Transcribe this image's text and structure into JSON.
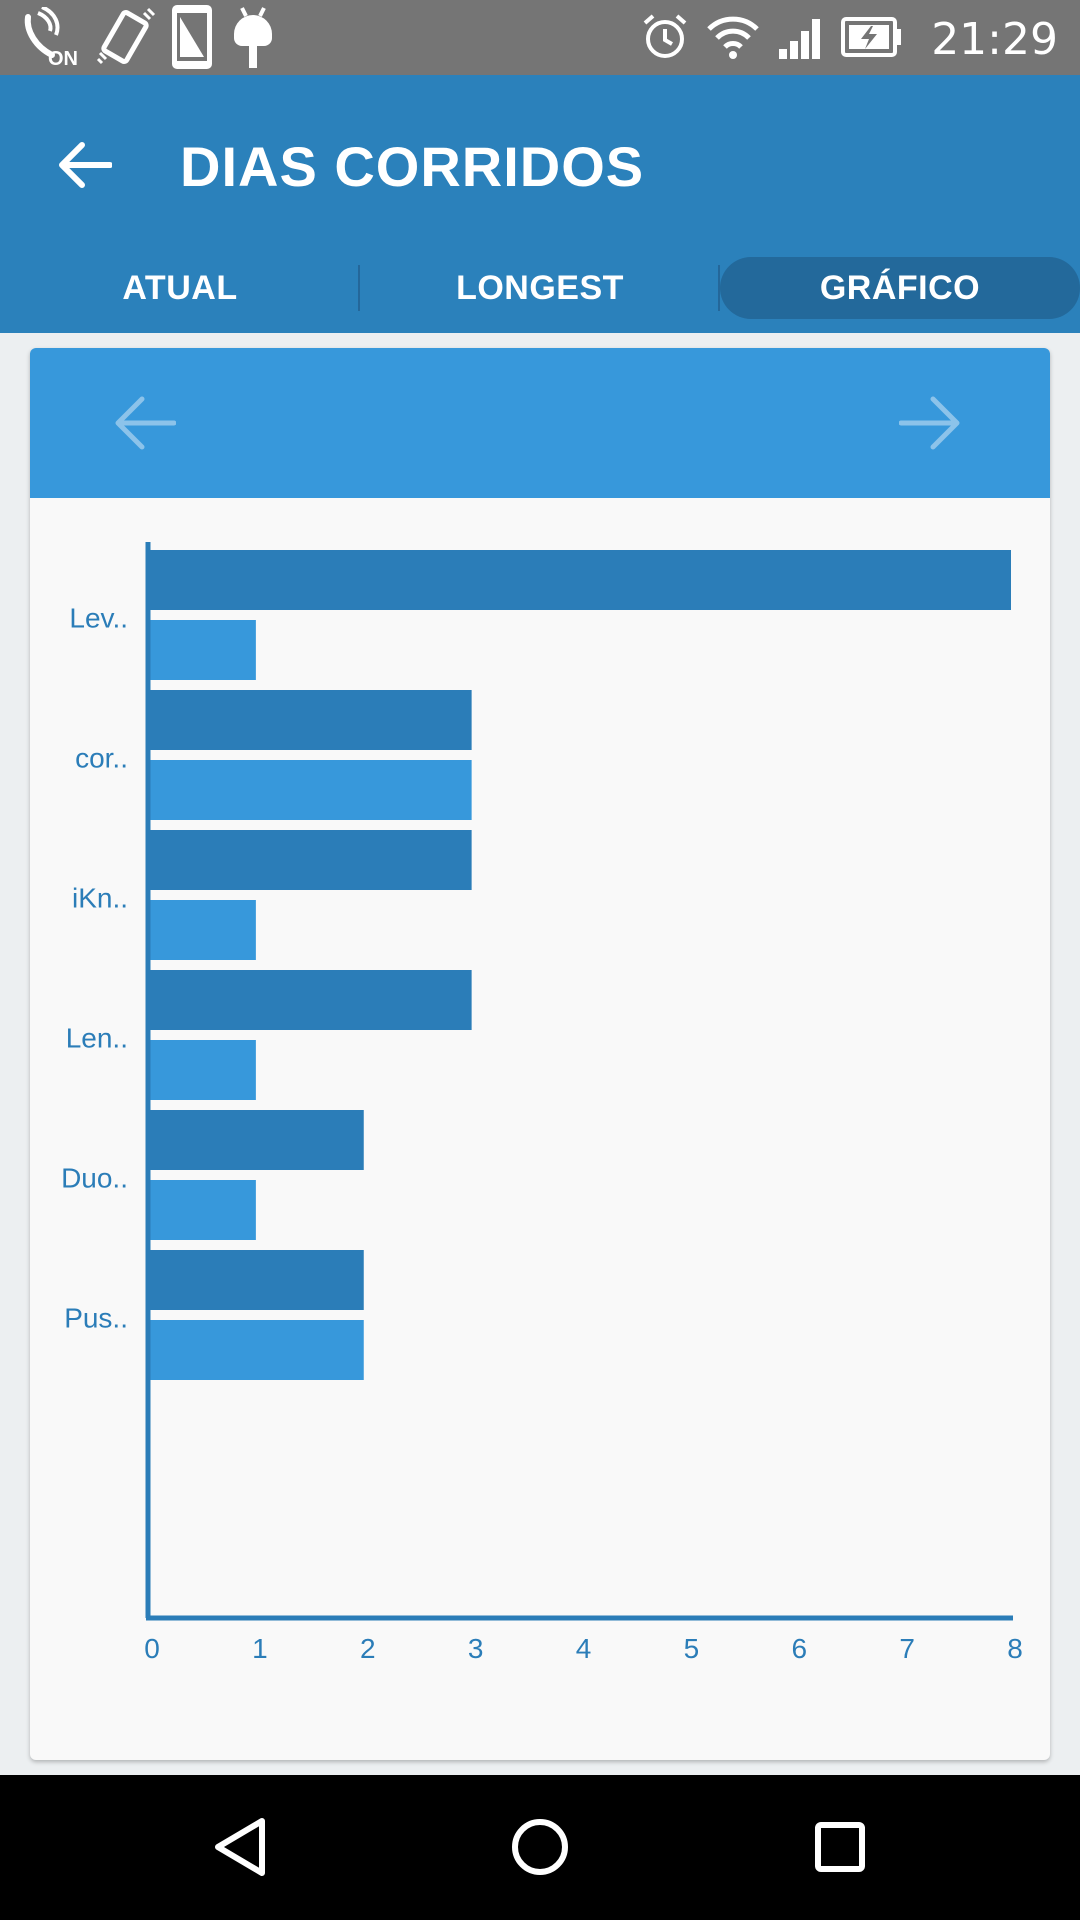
{
  "status_bar": {
    "time": "21:29",
    "left_icons": [
      "volte-on-icon",
      "vibrate-icon",
      "screenshot-icon",
      "android-debug-icon"
    ],
    "volte_label": "ON",
    "right_icons": [
      "alarm-icon",
      "wifi-icon",
      "signal-icon",
      "battery-charging-icon"
    ]
  },
  "header": {
    "title": "DIAS CORRIDOS",
    "back_icon": "arrow-back-icon"
  },
  "tabs": [
    {
      "label": "ATUAL",
      "selected": false
    },
    {
      "label": "LONGEST",
      "selected": false
    },
    {
      "label": "GRÁFICO",
      "selected": true
    }
  ],
  "colors": {
    "appbar": "#2b81bb",
    "tab_selected": "#23699b",
    "card_header": "#3798db",
    "series_dark": "#2b7db8",
    "series_light": "#3798db",
    "axis": "#2b7db8",
    "label": "#2b7db8"
  },
  "chart_data": {
    "type": "bar",
    "orientation": "horizontal",
    "categories": [
      "Lev..",
      "cor..",
      "iKn..",
      "Len..",
      "Duo..",
      "Pus.."
    ],
    "series": [
      {
        "values": [
          8,
          3,
          3,
          3,
          2,
          2
        ],
        "color": "#2b7db8"
      },
      {
        "values": [
          1,
          3,
          1,
          1,
          1,
          2
        ],
        "color": "#3798db"
      }
    ],
    "x_ticks": [
      "0",
      "1",
      "2",
      "3",
      "4",
      "5",
      "6",
      "7",
      "8"
    ],
    "xlim": [
      0,
      8
    ],
    "grid": false,
    "legend": "none"
  },
  "navigation": {
    "back_icon": "nav-back-icon",
    "home_icon": "nav-home-icon",
    "recents_icon": "nav-recents-icon"
  }
}
